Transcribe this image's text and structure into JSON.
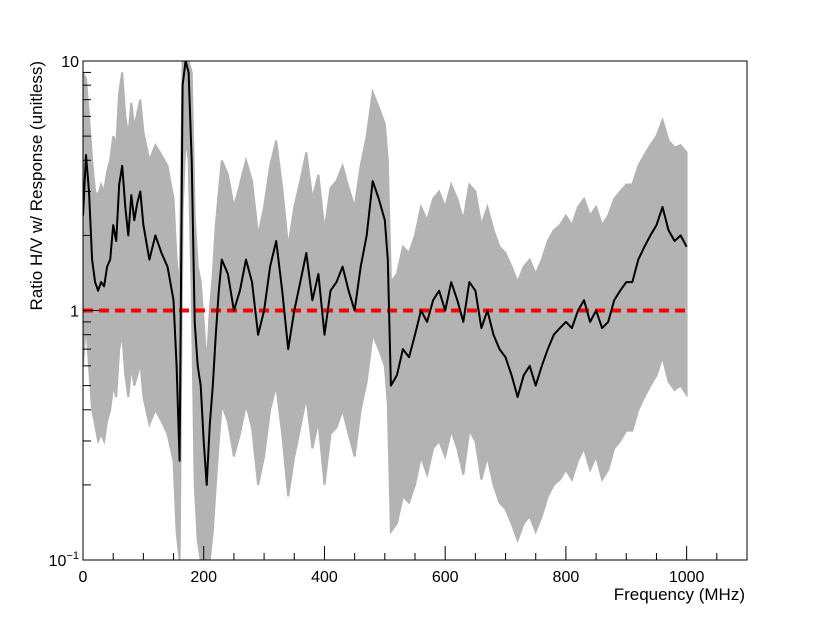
{
  "chart_data": {
    "type": "line",
    "title": "",
    "xlabel": "Frequency (MHz)",
    "ylabel": "Ratio H/V w/ Response (unitless)",
    "xlim": [
      0,
      1100
    ],
    "ylim": [
      0.1,
      10
    ],
    "yscale": "log",
    "grid": false,
    "legend": "none",
    "x_ticks": [
      {
        "value": 0,
        "label": "0"
      },
      {
        "value": 200,
        "label": "200"
      },
      {
        "value": 400,
        "label": "400"
      },
      {
        "value": 600,
        "label": "600"
      },
      {
        "value": 800,
        "label": "800"
      },
      {
        "value": 1000,
        "label": "1000"
      }
    ],
    "y_ticks": [
      {
        "value": 0.1,
        "label": "10",
        "sup": "−1"
      },
      {
        "value": 1,
        "label": "1",
        "sup": ""
      },
      {
        "value": 10,
        "label": "10",
        "sup": ""
      }
    ],
    "reference_line": {
      "y": 1.0,
      "color": "#ff0000",
      "style": "dashed"
    },
    "band_color": "#b3b3b3",
    "line_color": "#000000",
    "series": [
      {
        "role": "ratio",
        "x": [
          0,
          5,
          10,
          15,
          20,
          25,
          30,
          35,
          40,
          45,
          50,
          55,
          60,
          65,
          70,
          75,
          80,
          85,
          90,
          95,
          100,
          110,
          120,
          130,
          140,
          150,
          155,
          160,
          165,
          170,
          175,
          180,
          185,
          190,
          195,
          200,
          205,
          210,
          215,
          220,
          225,
          230,
          240,
          250,
          260,
          270,
          280,
          290,
          300,
          310,
          320,
          330,
          340,
          350,
          360,
          370,
          380,
          390,
          400,
          410,
          420,
          430,
          440,
          450,
          460,
          470,
          480,
          490,
          500,
          505,
          510,
          520,
          530,
          540,
          550,
          560,
          570,
          580,
          590,
          600,
          610,
          620,
          630,
          640,
          650,
          660,
          670,
          680,
          690,
          700,
          710,
          720,
          730,
          740,
          750,
          760,
          770,
          780,
          790,
          800,
          810,
          820,
          830,
          840,
          850,
          860,
          870,
          880,
          890,
          900,
          910,
          920,
          930,
          940,
          950,
          960,
          970,
          980,
          990,
          1000
        ],
        "y": [
          2.4,
          4.2,
          3.0,
          1.6,
          1.3,
          1.2,
          1.3,
          1.25,
          1.5,
          1.6,
          2.2,
          1.9,
          3.2,
          3.8,
          2.6,
          2.0,
          2.9,
          2.3,
          2.7,
          3.0,
          2.2,
          1.6,
          2.0,
          1.7,
          1.5,
          1.1,
          0.6,
          0.25,
          8.0,
          10,
          9.0,
          4.0,
          0.9,
          0.6,
          0.5,
          0.3,
          0.2,
          0.35,
          0.5,
          0.8,
          1.2,
          1.6,
          1.4,
          1.0,
          1.2,
          1.6,
          1.3,
          0.8,
          1.0,
          1.5,
          1.9,
          1.2,
          0.7,
          1.0,
          1.3,
          1.7,
          1.1,
          1.4,
          0.8,
          1.2,
          1.3,
          1.5,
          1.2,
          1.0,
          1.5,
          2.0,
          3.3,
          2.8,
          2.3,
          1.6,
          0.5,
          0.55,
          0.7,
          0.65,
          0.8,
          1.0,
          0.9,
          1.1,
          1.2,
          1.0,
          1.3,
          1.1,
          0.9,
          1.3,
          1.2,
          0.85,
          1.0,
          0.8,
          0.7,
          0.65,
          0.55,
          0.45,
          0.55,
          0.6,
          0.5,
          0.6,
          0.7,
          0.8,
          0.85,
          0.9,
          0.85,
          1.0,
          1.1,
          0.9,
          1.0,
          0.85,
          0.9,
          1.1,
          1.2,
          1.3,
          1.3,
          1.6,
          1.8,
          2.0,
          2.2,
          2.6,
          2.1,
          1.9,
          2.0,
          1.8
        ]
      },
      {
        "role": "band-upper",
        "x": [
          0,
          5,
          10,
          15,
          20,
          25,
          30,
          35,
          40,
          45,
          50,
          55,
          60,
          65,
          70,
          75,
          80,
          85,
          90,
          95,
          100,
          110,
          120,
          130,
          140,
          150,
          155,
          160,
          165,
          170,
          175,
          180,
          185,
          190,
          195,
          200,
          205,
          210,
          215,
          220,
          225,
          230,
          240,
          250,
          260,
          270,
          280,
          290,
          300,
          310,
          320,
          330,
          340,
          350,
          360,
          370,
          380,
          390,
          400,
          410,
          420,
          430,
          440,
          450,
          460,
          470,
          480,
          490,
          500,
          505,
          510,
          520,
          530,
          540,
          550,
          560,
          570,
          580,
          590,
          600,
          610,
          620,
          630,
          640,
          650,
          660,
          670,
          680,
          690,
          700,
          710,
          720,
          730,
          740,
          750,
          760,
          770,
          780,
          790,
          800,
          810,
          820,
          830,
          840,
          850,
          860,
          870,
          880,
          890,
          900,
          910,
          920,
          930,
          940,
          950,
          960,
          970,
          980,
          990,
          1000
        ],
        "y": [
          9.0,
          8.5,
          6.0,
          4.0,
          3.0,
          2.9,
          3.2,
          3.0,
          3.6,
          4.0,
          5.0,
          4.6,
          7.5,
          9.0,
          6.0,
          5.0,
          6.8,
          5.4,
          6.2,
          7.0,
          5.2,
          4.0,
          4.6,
          4.2,
          3.8,
          2.8,
          1.6,
          1.2,
          10,
          10,
          10,
          9.0,
          2.4,
          1.5,
          1.3,
          0.9,
          0.6,
          1.0,
          1.4,
          2.2,
          3.0,
          4.0,
          3.5,
          2.6,
          3.2,
          4.0,
          3.3,
          2.0,
          2.6,
          3.8,
          4.8,
          3.1,
          1.8,
          2.6,
          3.3,
          4.3,
          2.8,
          3.5,
          2.1,
          3.1,
          3.3,
          3.8,
          3.1,
          2.6,
          3.8,
          5.0,
          7.5,
          6.5,
          5.6,
          4.0,
          1.3,
          1.4,
          1.8,
          1.7,
          2.0,
          2.6,
          2.3,
          2.8,
          3.0,
          2.6,
          3.2,
          2.8,
          2.3,
          3.2,
          3.0,
          2.2,
          2.6,
          2.1,
          1.8,
          1.7,
          1.5,
          1.3,
          1.5,
          1.6,
          1.4,
          1.6,
          1.9,
          2.1,
          2.2,
          2.4,
          2.2,
          2.6,
          2.8,
          2.4,
          2.6,
          2.2,
          2.4,
          2.8,
          3.0,
          3.2,
          3.2,
          3.8,
          4.2,
          4.6,
          5.0,
          5.8,
          4.8,
          4.5,
          4.6,
          4.3
        ]
      },
      {
        "role": "band-lower",
        "x": [
          0,
          5,
          10,
          15,
          20,
          25,
          30,
          35,
          40,
          45,
          50,
          55,
          60,
          65,
          70,
          75,
          80,
          85,
          90,
          95,
          100,
          110,
          120,
          130,
          140,
          150,
          155,
          160,
          165,
          170,
          175,
          180,
          185,
          190,
          195,
          200,
          205,
          210,
          215,
          220,
          225,
          230,
          240,
          250,
          260,
          270,
          280,
          290,
          300,
          310,
          320,
          330,
          340,
          350,
          360,
          370,
          380,
          390,
          400,
          410,
          420,
          430,
          440,
          450,
          460,
          470,
          480,
          490,
          500,
          505,
          510,
          520,
          530,
          540,
          550,
          560,
          570,
          580,
          590,
          600,
          610,
          620,
          630,
          640,
          650,
          660,
          670,
          680,
          690,
          700,
          710,
          720,
          730,
          740,
          750,
          760,
          770,
          780,
          790,
          800,
          810,
          820,
          830,
          840,
          850,
          860,
          870,
          880,
          890,
          900,
          910,
          920,
          930,
          940,
          950,
          960,
          970,
          980,
          990,
          1000
        ],
        "y": [
          0.6,
          0.9,
          0.6,
          0.4,
          0.35,
          0.3,
          0.32,
          0.3,
          0.36,
          0.4,
          0.5,
          0.45,
          0.7,
          0.8,
          0.55,
          0.45,
          0.6,
          0.5,
          0.55,
          0.62,
          0.45,
          0.35,
          0.4,
          0.36,
          0.32,
          0.25,
          0.13,
          0.1,
          2.5,
          5.0,
          4.0,
          1.2,
          0.2,
          0.12,
          0.1,
          0.1,
          0.1,
          0.1,
          0.13,
          0.2,
          0.3,
          0.42,
          0.36,
          0.26,
          0.32,
          0.42,
          0.34,
          0.2,
          0.26,
          0.4,
          0.5,
          0.32,
          0.18,
          0.26,
          0.34,
          0.45,
          0.28,
          0.36,
          0.2,
          0.32,
          0.34,
          0.4,
          0.32,
          0.26,
          0.4,
          0.52,
          0.8,
          0.7,
          0.6,
          0.42,
          0.13,
          0.14,
          0.18,
          0.17,
          0.2,
          0.26,
          0.22,
          0.28,
          0.3,
          0.26,
          0.33,
          0.28,
          0.22,
          0.33,
          0.3,
          0.21,
          0.26,
          0.2,
          0.17,
          0.16,
          0.14,
          0.12,
          0.14,
          0.15,
          0.13,
          0.15,
          0.18,
          0.2,
          0.21,
          0.23,
          0.21,
          0.25,
          0.28,
          0.23,
          0.26,
          0.21,
          0.23,
          0.28,
          0.3,
          0.33,
          0.33,
          0.4,
          0.45,
          0.5,
          0.55,
          0.65,
          0.52,
          0.48,
          0.5,
          0.46
        ]
      }
    ]
  }
}
